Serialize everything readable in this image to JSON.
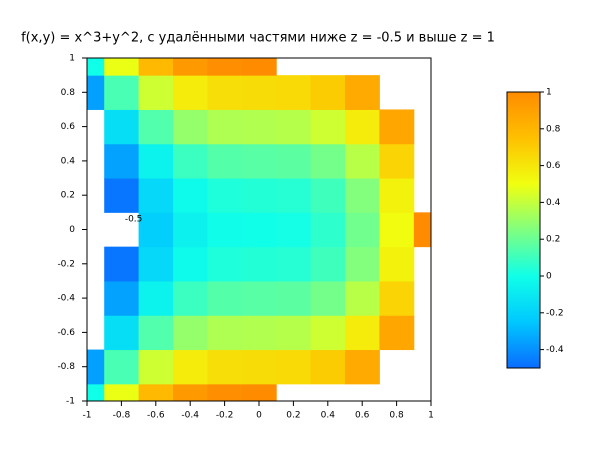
{
  "chart_data": {
    "type": "heatmap",
    "title": "f(x,y) = x^3+y^2, с удалёнными частями ниже z = -0.5 и выше z = 1",
    "x": [
      -1,
      -0.8,
      -0.6,
      -0.4,
      -0.2,
      0,
      0.2,
      0.4,
      0.6,
      0.8,
      1
    ],
    "y": [
      -1,
      -0.8,
      -0.6,
      -0.4,
      -0.2,
      0,
      0.2,
      0.4,
      0.6,
      0.8,
      1
    ],
    "z": [
      [
        0,
        0.488,
        0.784,
        0.936,
        0.992,
        1,
        null,
        null,
        null,
        null,
        null
      ],
      [
        -0.36,
        0.128,
        0.424,
        0.576,
        0.632,
        0.64,
        0.648,
        0.704,
        0.856,
        null,
        null
      ],
      [
        null,
        -0.152,
        0.144,
        0.296,
        0.352,
        0.36,
        0.368,
        0.424,
        0.576,
        0.872,
        null
      ],
      [
        null,
        -0.352,
        -0.056,
        0.096,
        0.152,
        0.16,
        0.168,
        0.224,
        0.376,
        0.672,
        null
      ],
      [
        null,
        -0.472,
        -0.176,
        -0.024,
        0.032,
        0.04,
        0.048,
        0.104,
        0.256,
        0.552,
        null
      ],
      [
        null,
        null,
        -0.216,
        -0.064,
        -0.008,
        0,
        0.008,
        0.064,
        0.216,
        0.512,
        1
      ],
      [
        null,
        -0.472,
        -0.176,
        -0.024,
        0.032,
        0.04,
        0.048,
        0.104,
        0.256,
        0.552,
        null
      ],
      [
        null,
        -0.352,
        -0.056,
        0.096,
        0.152,
        0.16,
        0.168,
        0.224,
        0.376,
        0.672,
        null
      ],
      [
        null,
        -0.152,
        0.144,
        0.296,
        0.352,
        0.36,
        0.368,
        0.424,
        0.576,
        0.872,
        null
      ],
      [
        -0.36,
        0.128,
        0.424,
        0.576,
        0.632,
        0.64,
        0.648,
        0.704,
        0.856,
        null,
        null
      ],
      [
        0,
        0.488,
        0.784,
        0.936,
        0.992,
        1,
        null,
        null,
        null,
        null,
        null
      ]
    ],
    "xlim": [
      -1,
      1
    ],
    "ylim": [
      -1,
      1
    ],
    "xticks": [
      -1,
      -0.8,
      -0.6,
      -0.4,
      -0.2,
      0,
      0.2,
      0.4,
      0.6,
      0.8,
      1
    ],
    "yticks": [
      -1,
      -0.8,
      -0.6,
      -0.4,
      -0.2,
      0,
      0.2,
      0.4,
      0.6,
      0.8,
      1
    ],
    "clim": [
      -0.5,
      1
    ],
    "cticks": [
      -0.4,
      -0.2,
      0,
      0.2,
      0.4,
      0.6,
      0.8,
      1
    ],
    "colormap": [
      "#0a6cff",
      "#00c8ff",
      "#10ffe8",
      "#80ff80",
      "#f0ff10",
      "#ffc000",
      "#ff8c00"
    ],
    "annotations": [
      {
        "text": "-0.5",
        "x": -0.78,
        "y": 0.06
      }
    ]
  }
}
